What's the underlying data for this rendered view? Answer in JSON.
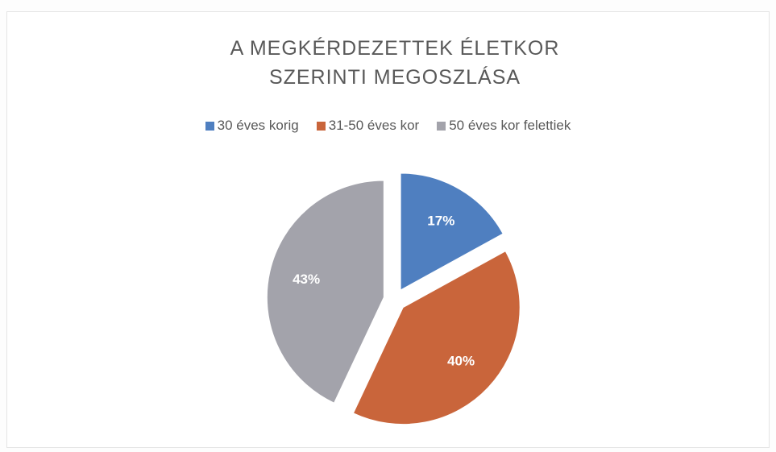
{
  "chart_data": {
    "type": "pie",
    "title": "A MEGKÉRDEZETTEK ÉLETKOR SZERINTI MEGOSZLÁSA",
    "categories": [
      "30 éves korig",
      "31-50 éves kor",
      "50 éves kor felettiek"
    ],
    "values": [
      17,
      40,
      43
    ],
    "value_labels": [
      "17%",
      "40%",
      "43%"
    ],
    "colors": [
      "#4f7fc0",
      "#c9653b",
      "#a3a3ab"
    ],
    "legend": "top"
  }
}
